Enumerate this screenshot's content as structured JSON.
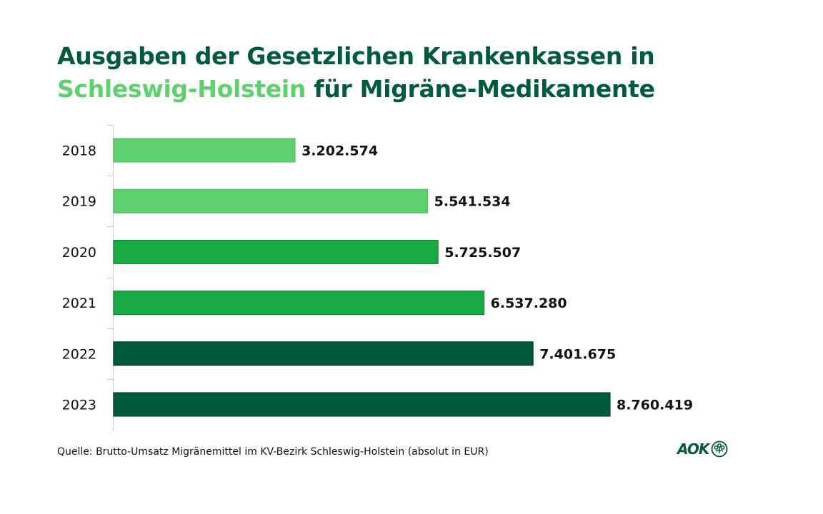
{
  "title": {
    "line1": "Ausgaben der Gesetzlichen Krankenkassen in",
    "line2_highlight": "Schleswig-Holstein",
    "line2_rest": " für Migräne-Medikamente"
  },
  "colors": {
    "title": "#005a3c",
    "title_highlight": "#5fd06e",
    "light_green": "#5fd06e",
    "medium_green": "#1aaa44",
    "dark_green": "#005a3c",
    "axis": "#cccccc",
    "label": "#111111"
  },
  "chart_data": {
    "type": "bar",
    "orientation": "horizontal",
    "title": "Ausgaben der Gesetzlichen Krankenkassen in Schleswig-Holstein für Migräne-Medikamente",
    "categories": [
      "2018",
      "2019",
      "2020",
      "2021",
      "2022",
      "2023"
    ],
    "values": [
      3202574,
      5541534,
      5725507,
      6537280,
      7401675,
      8760419
    ],
    "value_labels": [
      "3.202.574",
      "5.541.534",
      "5.725.507",
      "6.537.280",
      "7.401.675",
      "8.760.419"
    ],
    "bar_colors": [
      "#5fd06e",
      "#5fd06e",
      "#1aaa44",
      "#1aaa44",
      "#005a3c",
      "#005a3c"
    ],
    "xlabel": "",
    "ylabel": "",
    "xlim": [
      0,
      8760419
    ],
    "grid": false,
    "legend": "none",
    "unit": "EUR"
  },
  "footer": {
    "source": "Quelle: Brutto-Umsatz Migränemittel im KV-Bezirk Schleswig-Holstein (absolut in EUR)",
    "logo_text": "AOK",
    "logo_icon": "aok-tree-icon"
  }
}
